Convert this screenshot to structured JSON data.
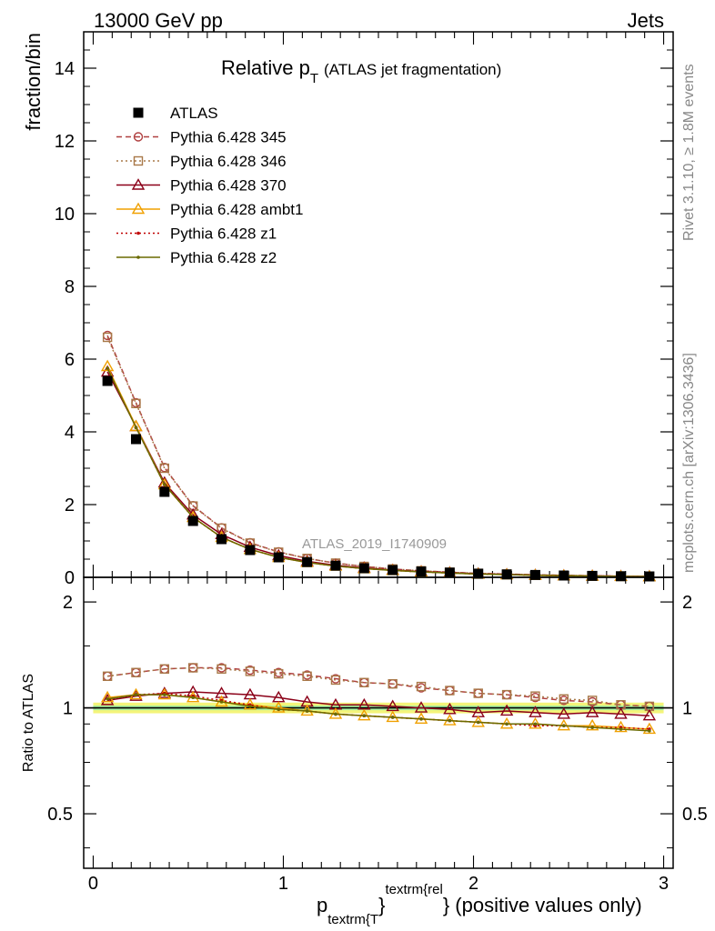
{
  "header": {
    "left": "13000 GeV pp",
    "right": "Jets"
  },
  "side_labels": {
    "rivet": "Rivet 3.1.10, ≥ 1.8M events",
    "mcplots": "mcplots.cern.ch [arXiv:1306.3436]"
  },
  "chart_data": [
    {
      "type": "line",
      "panel": "main",
      "title_main": "Relative p",
      "title_sub": "T",
      "title_rest": "(ATLAS jet fragmentation)",
      "ylabel": "fraction/bin",
      "watermark": "ATLAS_2019_I1740909",
      "xlim": [
        -0.05,
        3.05
      ],
      "ylim": [
        0,
        15
      ],
      "yticks": [
        0,
        2,
        4,
        6,
        8,
        10,
        12,
        14
      ],
      "ytick_labels": [
        "0",
        "2",
        "4",
        "6",
        "8",
        "10",
        "12",
        "14"
      ],
      "x": [
        0.075,
        0.225,
        0.375,
        0.525,
        0.675,
        0.825,
        0.975,
        1.125,
        1.275,
        1.425,
        1.575,
        1.725,
        1.875,
        2.025,
        2.175,
        2.325,
        2.475,
        2.625,
        2.775,
        2.925
      ],
      "legend": [
        {
          "name": "ATLAS",
          "color": "#000000",
          "marker": "filled-square",
          "dash": "none"
        },
        {
          "name": "Pythia 6.428 345",
          "color": "#b04040",
          "marker": "open-circle",
          "dash": "6,4"
        },
        {
          "name": "Pythia 6.428 346",
          "color": "#a87848",
          "marker": "open-square",
          "dash": "2,3"
        },
        {
          "name": "Pythia 6.428 370",
          "color": "#8b0018",
          "marker": "open-triangle",
          "dash": "none"
        },
        {
          "name": "Pythia 6.428 ambt1",
          "color": "#f0a000",
          "marker": "open-triangle",
          "dash": "none"
        },
        {
          "name": "Pythia 6.428 z1",
          "color": "#c00000",
          "marker": "dot",
          "dash": "2,3"
        },
        {
          "name": "Pythia 6.428 z2",
          "color": "#6a6a00",
          "marker": "dot",
          "dash": "none"
        }
      ],
      "series": [
        {
          "name": "ATLAS",
          "values": [
            5.4,
            3.8,
            2.35,
            1.55,
            1.05,
            0.75,
            0.55,
            0.42,
            0.32,
            0.25,
            0.2,
            0.16,
            0.13,
            0.1,
            0.08,
            0.065,
            0.05,
            0.04,
            0.03,
            0.025
          ]
        },
        {
          "name": "Pythia 6.428 345",
          "values": [
            6.65,
            4.8,
            3.02,
            1.97,
            1.36,
            0.95,
            0.7,
            0.52,
            0.39,
            0.3,
            0.23,
            0.18,
            0.14,
            0.11,
            0.09,
            0.07,
            0.055,
            0.045,
            0.033,
            0.026
          ]
        },
        {
          "name": "Pythia 6.428 346",
          "values": [
            6.6,
            4.78,
            3.0,
            1.96,
            1.35,
            0.94,
            0.69,
            0.52,
            0.39,
            0.3,
            0.23,
            0.18,
            0.14,
            0.11,
            0.09,
            0.07,
            0.055,
            0.045,
            0.033,
            0.026
          ]
        },
        {
          "name": "Pythia 6.428 370",
          "values": [
            5.65,
            4.15,
            2.6,
            1.72,
            1.18,
            0.83,
            0.6,
            0.44,
            0.33,
            0.26,
            0.2,
            0.16,
            0.13,
            0.1,
            0.08,
            0.063,
            0.048,
            0.039,
            0.029,
            0.024
          ]
        },
        {
          "name": "Pythia 6.428 ambt1",
          "values": [
            5.8,
            4.15,
            2.55,
            1.65,
            1.1,
            0.77,
            0.55,
            0.41,
            0.31,
            0.24,
            0.19,
            0.15,
            0.12,
            0.09,
            0.075,
            0.058,
            0.045,
            0.036,
            0.026,
            0.022
          ]
        },
        {
          "name": "Pythia 6.428 z1",
          "values": [
            5.75,
            4.12,
            2.55,
            1.65,
            1.1,
            0.77,
            0.55,
            0.41,
            0.31,
            0.24,
            0.19,
            0.15,
            0.12,
            0.09,
            0.075,
            0.058,
            0.045,
            0.036,
            0.026,
            0.022
          ]
        },
        {
          "name": "Pythia 6.428 z2",
          "values": [
            5.75,
            4.12,
            2.55,
            1.65,
            1.1,
            0.77,
            0.55,
            0.41,
            0.31,
            0.24,
            0.19,
            0.15,
            0.12,
            0.09,
            0.075,
            0.058,
            0.045,
            0.036,
            0.026,
            0.022
          ]
        }
      ]
    },
    {
      "type": "line",
      "panel": "ratio",
      "ylabel": "Ratio to ATLAS",
      "xlabel_main": "p",
      "xlabel_sub": "textrm{T",
      "xlabel_sup": "textrm{rel",
      "xlabel_brace": "}",
      "xlabel_rest": "} (positive values only)",
      "xlim": [
        -0.05,
        3.05
      ],
      "ylim": [
        0.35,
        2.35
      ],
      "xticks": [
        0,
        1,
        2,
        3
      ],
      "xtick_labels": [
        "0",
        "1",
        "2",
        "3"
      ],
      "yticks": [
        0.5,
        1,
        2
      ],
      "ytick_labels": [
        "0.5",
        "1",
        "2"
      ],
      "reference": 1,
      "band_inner": [
        0.985,
        1.015
      ],
      "band_outer": [
        0.965,
        1.035
      ],
      "x": [
        0.075,
        0.225,
        0.375,
        0.525,
        0.675,
        0.825,
        0.975,
        1.125,
        1.275,
        1.425,
        1.575,
        1.725,
        1.875,
        2.025,
        2.175,
        2.325,
        2.475,
        2.625,
        2.775,
        2.925
      ],
      "series": [
        {
          "name": "Pythia 6.428 345",
          "values": [
            1.23,
            1.26,
            1.29,
            1.3,
            1.3,
            1.28,
            1.26,
            1.24,
            1.21,
            1.18,
            1.17,
            1.14,
            1.12,
            1.1,
            1.09,
            1.07,
            1.05,
            1.04,
            1.02,
            1.01
          ]
        },
        {
          "name": "Pythia 6.428 346",
          "values": [
            1.23,
            1.26,
            1.29,
            1.3,
            1.29,
            1.27,
            1.25,
            1.23,
            1.2,
            1.18,
            1.17,
            1.15,
            1.12,
            1.1,
            1.09,
            1.08,
            1.06,
            1.05,
            1.02,
            1.01
          ]
        },
        {
          "name": "Pythia 6.428 370",
          "values": [
            1.05,
            1.08,
            1.1,
            1.11,
            1.1,
            1.09,
            1.07,
            1.04,
            1.02,
            1.02,
            1.01,
            1.0,
            0.99,
            0.97,
            0.98,
            0.97,
            0.96,
            0.97,
            0.96,
            0.95
          ]
        },
        {
          "name": "Pythia 6.428 ambt1",
          "values": [
            1.07,
            1.09,
            1.09,
            1.07,
            1.04,
            1.02,
            1.0,
            0.98,
            0.96,
            0.95,
            0.94,
            0.93,
            0.92,
            0.91,
            0.9,
            0.9,
            0.89,
            0.89,
            0.88,
            0.87
          ]
        },
        {
          "name": "Pythia 6.428 z1",
          "values": [
            1.06,
            1.09,
            1.1,
            1.08,
            1.05,
            1.02,
            0.99,
            0.98,
            0.96,
            0.95,
            0.94,
            0.93,
            0.92,
            0.91,
            0.9,
            0.89,
            0.89,
            0.88,
            0.88,
            0.87
          ]
        },
        {
          "name": "Pythia 6.428 z2",
          "values": [
            1.06,
            1.09,
            1.09,
            1.07,
            1.04,
            1.01,
            0.99,
            0.98,
            0.96,
            0.95,
            0.94,
            0.93,
            0.92,
            0.91,
            0.9,
            0.9,
            0.89,
            0.88,
            0.87,
            0.86
          ]
        }
      ]
    }
  ]
}
